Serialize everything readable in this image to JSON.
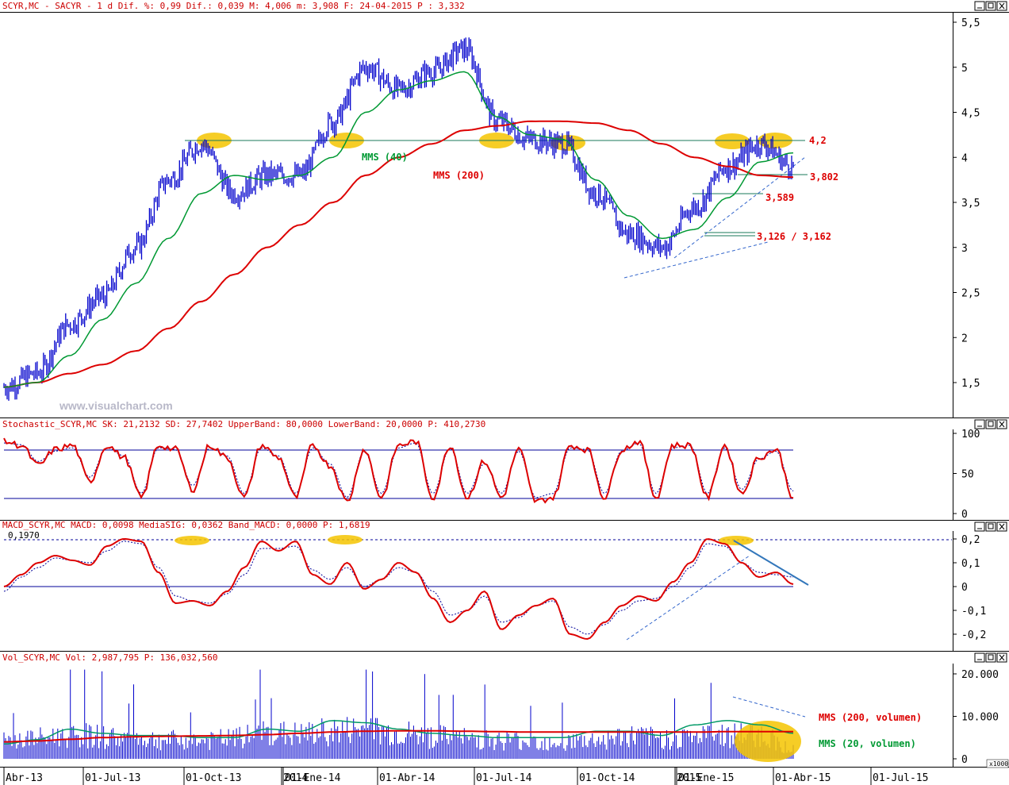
{
  "panels": {
    "price": {
      "header": "SCYR,MC - SACYR -  1 d Dif. %: 0,99 Dif.: 0,039 M: 4,006 m: 3,908 F: 24-04-2015 P : 3,332",
      "watermark": "www.visualchart.com",
      "yticks": [
        "5,5",
        "5",
        "4,5",
        "4",
        "3,5",
        "3",
        "2,5",
        "2",
        "1,5"
      ],
      "annotations": {
        "mms40": "MMS (40)",
        "mms200": "MMS (200)",
        "lvl42": "4,2",
        "lvl3802": "3,802",
        "lvl3589": "3,589",
        "lvl3126": "3,126 / 3,162"
      }
    },
    "stoch": {
      "header": "Stochastic_SCYR,MC SK: 21,2132 SD: 27,7402 UpperBand: 80,0000 LowerBand: 20,0000 P: 410,2730",
      "yticks": [
        "100",
        "50",
        "0"
      ]
    },
    "macd": {
      "header": "MACD_SCYR,MC MACD: 0,0098 MediaSIG: 0,0362 Band_MACD: 0,0000 P: 1,6819",
      "label": "0,1970",
      "yticks": [
        "0,2",
        "0,1",
        "0",
        "-0,1",
        "-0,2"
      ]
    },
    "vol": {
      "header": "Vol_SCYR,MC Vol: 2,987,795 P: 136,032,560",
      "yticks": [
        "20.000",
        "10.000",
        "0"
      ],
      "unit": "x1000",
      "annotations": {
        "mms200v": "MMS (200, volumen)",
        "mms20v": "MMS (20, volumen)"
      }
    }
  },
  "xaxis": {
    "labels": [
      "Abr-13",
      "01-Jul-13",
      "01-Oct-13",
      "2014",
      "01-Ene-14",
      "01-Abr-14",
      "01-Jul-14",
      "01-Oct-14",
      "2015",
      "01-Ene-15",
      "01-Abr-15",
      "01-Jul-15"
    ]
  },
  "colors": {
    "price": "#0000cc",
    "ma40": "#009933",
    "ma200": "#dd0000",
    "band": "#000099",
    "highlight": "#f5c400",
    "text_red": "#dd0000",
    "text_green": "#009933"
  },
  "chart_data": [
    {
      "type": "line",
      "title": "SCYR,MC - SACYR - 1 d",
      "ylim": [
        1,
        5.6
      ],
      "x": [
        "2013-04-01",
        "2013-05-01",
        "2013-06-01",
        "2013-07-01",
        "2013-08-01",
        "2013-09-01",
        "2013-10-01",
        "2013-11-01",
        "2013-12-01",
        "2014-01-01",
        "2014-02-01",
        "2014-03-01",
        "2014-04-01",
        "2014-05-01",
        "2014-06-01",
        "2014-07-01",
        "2014-08-01",
        "2014-09-01",
        "2014-10-01",
        "2014-11-01",
        "2014-12-01",
        "2015-01-01",
        "2015-02-01",
        "2015-03-01",
        "2015-04-01"
      ],
      "series": [
        {
          "name": "SCYR,MC",
          "values": [
            1.45,
            1.6,
            2.15,
            2.45,
            3.0,
            3.75,
            4.15,
            3.6,
            3.8,
            3.8,
            4.4,
            5.0,
            4.75,
            4.95,
            5.2,
            4.4,
            4.2,
            4.15,
            3.6,
            3.15,
            3.0,
            3.45,
            3.9,
            4.15,
            3.9
          ]
        },
        {
          "name": "MMS (40)",
          "values": [
            1.45,
            1.5,
            1.8,
            2.2,
            2.6,
            3.1,
            3.6,
            3.8,
            3.75,
            3.8,
            4.0,
            4.5,
            4.75,
            4.85,
            4.95,
            4.45,
            4.25,
            4.2,
            3.75,
            3.35,
            3.1,
            3.2,
            3.55,
            3.95,
            4.05
          ]
        },
        {
          "name": "MMS (200)",
          "values": [
            1.45,
            1.5,
            1.6,
            1.7,
            1.85,
            2.1,
            2.4,
            2.7,
            3.0,
            3.25,
            3.5,
            3.8,
            4.0,
            4.15,
            4.3,
            4.35,
            4.4,
            4.4,
            4.38,
            4.3,
            4.15,
            4.0,
            3.9,
            3.8,
            3.78
          ]
        }
      ],
      "levels": [
        4.2,
        3.802,
        3.589,
        3.126,
        3.162
      ]
    },
    {
      "type": "line",
      "title": "Stochastic_SCYR,MC",
      "ylim": [
        0,
        100
      ],
      "series": [
        {
          "name": "SK",
          "values": [
            90,
            85,
            60,
            80,
            85,
            40,
            85,
            70,
            20,
            85,
            80,
            30,
            85,
            70,
            20,
            85,
            70,
            20,
            85,
            60,
            15,
            80,
            20,
            85,
            90,
            20,
            85,
            20,
            65,
            20,
            80,
            15,
            20,
            85,
            80,
            20,
            80,
            90,
            20,
            85,
            85,
            20,
            85,
            25,
            70,
            80,
            21
          ]
        },
        {
          "name": "SD",
          "values": [
            88,
            86,
            65,
            78,
            82,
            45,
            82,
            72,
            25,
            82,
            80,
            35,
            82,
            72,
            25,
            82,
            72,
            25,
            82,
            62,
            20,
            78,
            25,
            82,
            88,
            25,
            82,
            25,
            62,
            25,
            78,
            20,
            25,
            82,
            80,
            25,
            78,
            88,
            25,
            82,
            85,
            25,
            82,
            30,
            68,
            78,
            28
          ]
        }
      ],
      "bands": [
        80,
        20
      ]
    },
    {
      "type": "line",
      "title": "MACD_SCYR,MC",
      "ylim": [
        -0.25,
        0.22
      ],
      "series": [
        {
          "name": "MACD",
          "values": [
            0.0,
            0.05,
            0.1,
            0.13,
            0.11,
            0.09,
            0.17,
            0.2,
            0.19,
            0.06,
            -0.07,
            -0.06,
            -0.08,
            -0.02,
            0.08,
            0.19,
            0.15,
            0.19,
            0.05,
            0.01,
            0.1,
            -0.01,
            0.03,
            0.1,
            0.06,
            -0.05,
            -0.15,
            -0.1,
            -0.02,
            -0.18,
            -0.12,
            -0.08,
            -0.05,
            -0.2,
            -0.22,
            -0.15,
            -0.08,
            -0.04,
            -0.06,
            0.02,
            0.1,
            0.2,
            0.18,
            0.1,
            0.04,
            0.06,
            0.01
          ]
        },
        {
          "name": "MediaSIG",
          "values": [
            -0.02,
            0.04,
            0.08,
            0.12,
            0.11,
            0.1,
            0.15,
            0.19,
            0.18,
            0.08,
            -0.04,
            -0.06,
            -0.07,
            -0.03,
            0.05,
            0.16,
            0.16,
            0.17,
            0.07,
            0.03,
            0.08,
            0.0,
            0.03,
            0.08,
            0.06,
            -0.02,
            -0.12,
            -0.1,
            -0.04,
            -0.15,
            -0.13,
            -0.08,
            -0.06,
            -0.17,
            -0.2,
            -0.16,
            -0.1,
            -0.06,
            -0.05,
            0.0,
            0.08,
            0.18,
            0.17,
            0.1,
            0.06,
            0.05,
            0.04
          ]
        }
      ],
      "reference": 0.197
    },
    {
      "type": "bar",
      "title": "Vol_SCYR,MC",
      "ylabel": "x1000",
      "ylim": [
        0,
        22000
      ],
      "series": [
        {
          "name": "Vol",
          "values": [
            5000,
            6000,
            7000,
            6500,
            6000,
            5500,
            5200,
            6000,
            7500,
            7000,
            8000,
            8500,
            7500,
            6500,
            6000,
            5500,
            5200,
            5000,
            5500,
            6500,
            6000,
            6500,
            7000,
            7000,
            3000
          ]
        },
        {
          "name": "MMS (20, volumen)",
          "values": [
            3500,
            4500,
            7000,
            6000,
            5500,
            5500,
            5000,
            5000,
            7000,
            6500,
            9000,
            8500,
            7000,
            6000,
            5500,
            5000,
            5000,
            5000,
            6500,
            6500,
            5500,
            8000,
            9000,
            8000,
            6000
          ]
        },
        {
          "name": "MMS (200, volumen)",
          "values": [
            4000,
            4200,
            4600,
            5000,
            5200,
            5300,
            5400,
            5500,
            5700,
            6000,
            6300,
            6500,
            6600,
            6600,
            6500,
            6400,
            6300,
            6300,
            6300,
            6300,
            6300,
            6300,
            6400,
            6400,
            6400
          ]
        }
      ]
    }
  ]
}
